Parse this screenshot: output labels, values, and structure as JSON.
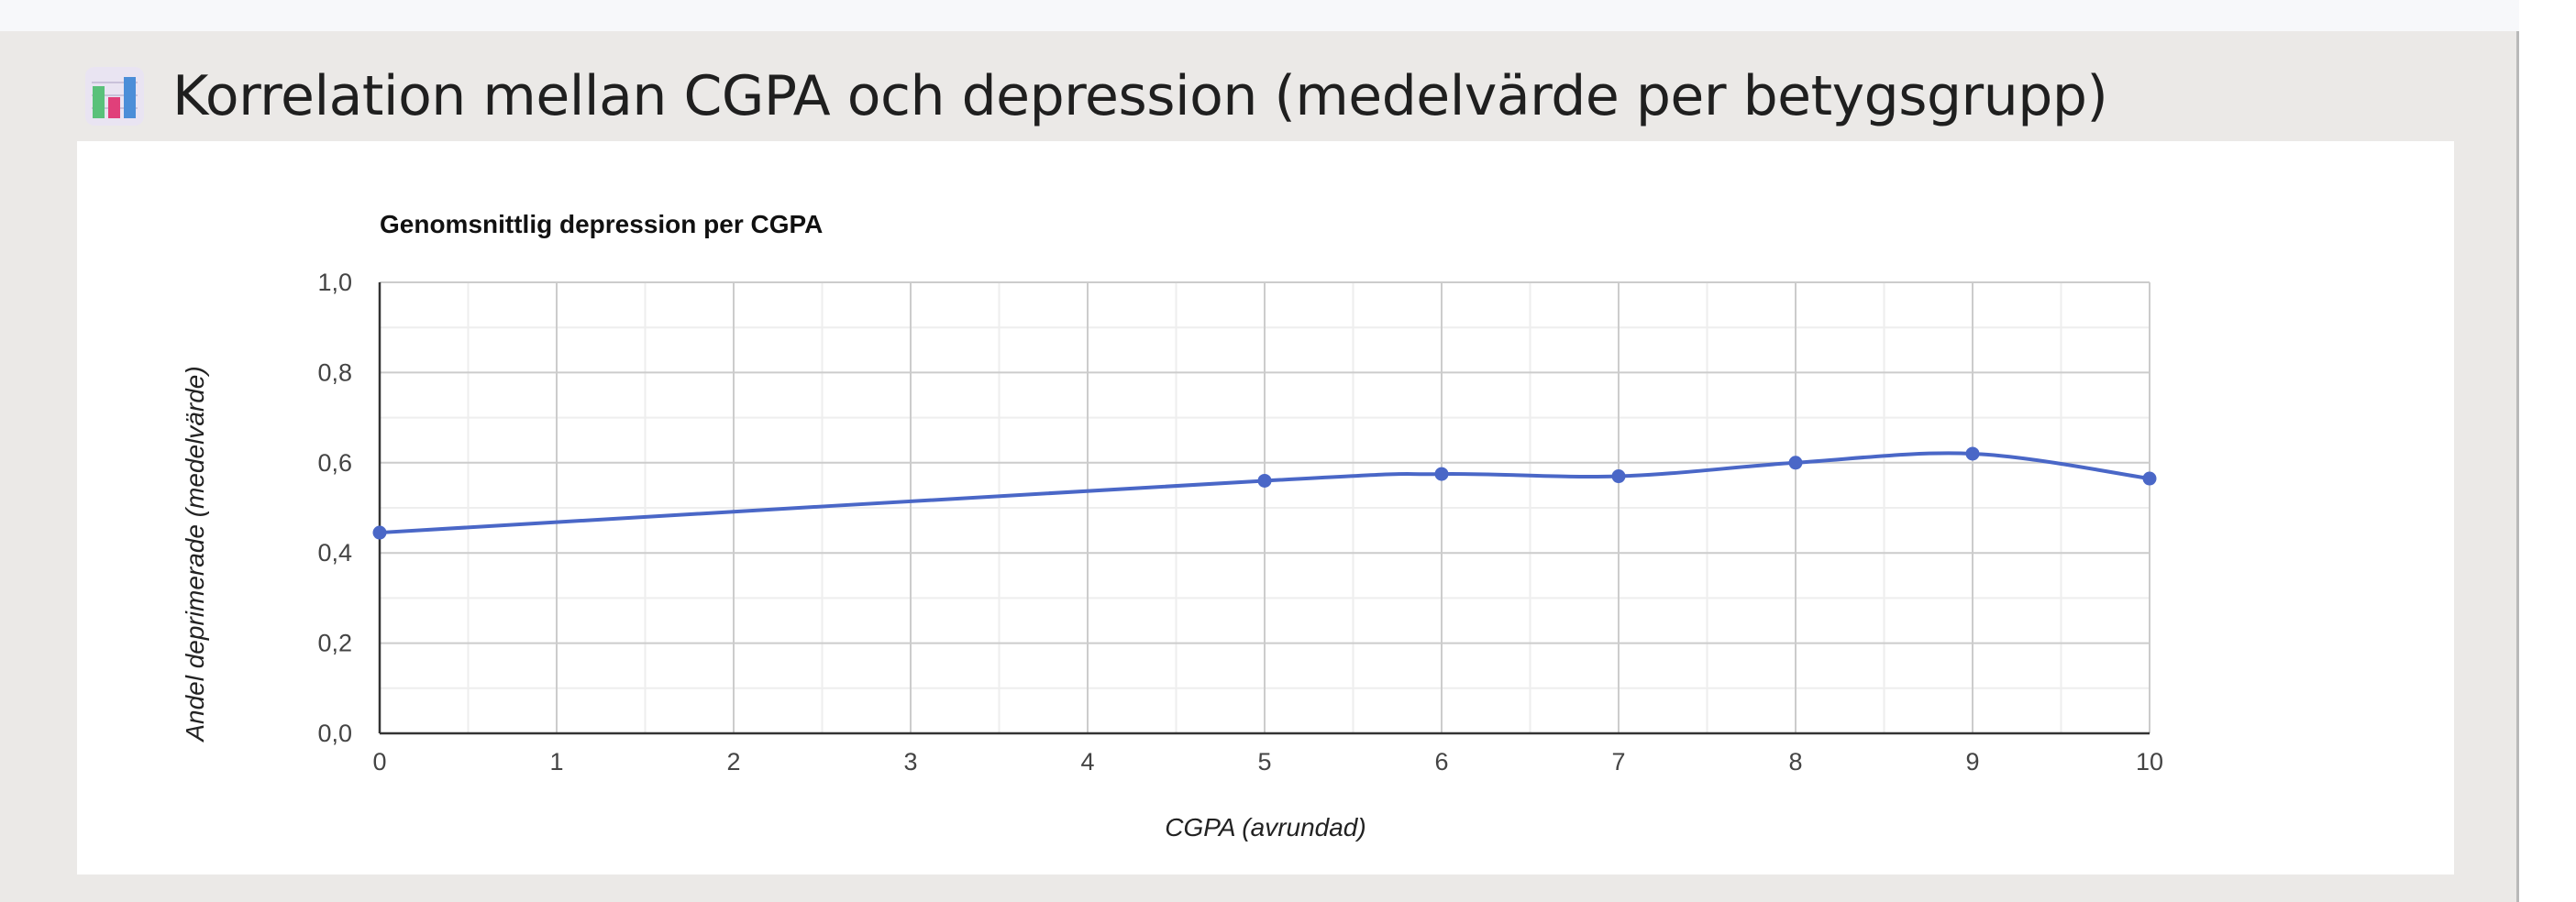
{
  "header": {
    "title": "Korrelation mellan CGPA och depression (medelvärde per betygsgrupp)",
    "icon": "bar-chart-icon"
  },
  "chart_data": {
    "type": "line",
    "title": "Genomsnittlig depression per CGPA",
    "xlabel": "CGPA (avrundad)",
    "ylabel": "Andel deprimerade (medelvärde)",
    "xlim": [
      0,
      10
    ],
    "ylim": [
      0,
      1
    ],
    "x_ticks": [
      "0",
      "1",
      "2",
      "3",
      "4",
      "5",
      "6",
      "7",
      "8",
      "9",
      "10"
    ],
    "y_ticks": [
      "0,0",
      "0,2",
      "0,4",
      "0,6",
      "0,8",
      "1,0"
    ],
    "grid": true,
    "series": [
      {
        "color": "#4a67c7",
        "x": [
          0,
          5,
          6,
          7,
          8,
          9,
          10
        ],
        "y": [
          0.445,
          0.56,
          0.575,
          0.57,
          0.6,
          0.62,
          0.565
        ]
      }
    ]
  }
}
